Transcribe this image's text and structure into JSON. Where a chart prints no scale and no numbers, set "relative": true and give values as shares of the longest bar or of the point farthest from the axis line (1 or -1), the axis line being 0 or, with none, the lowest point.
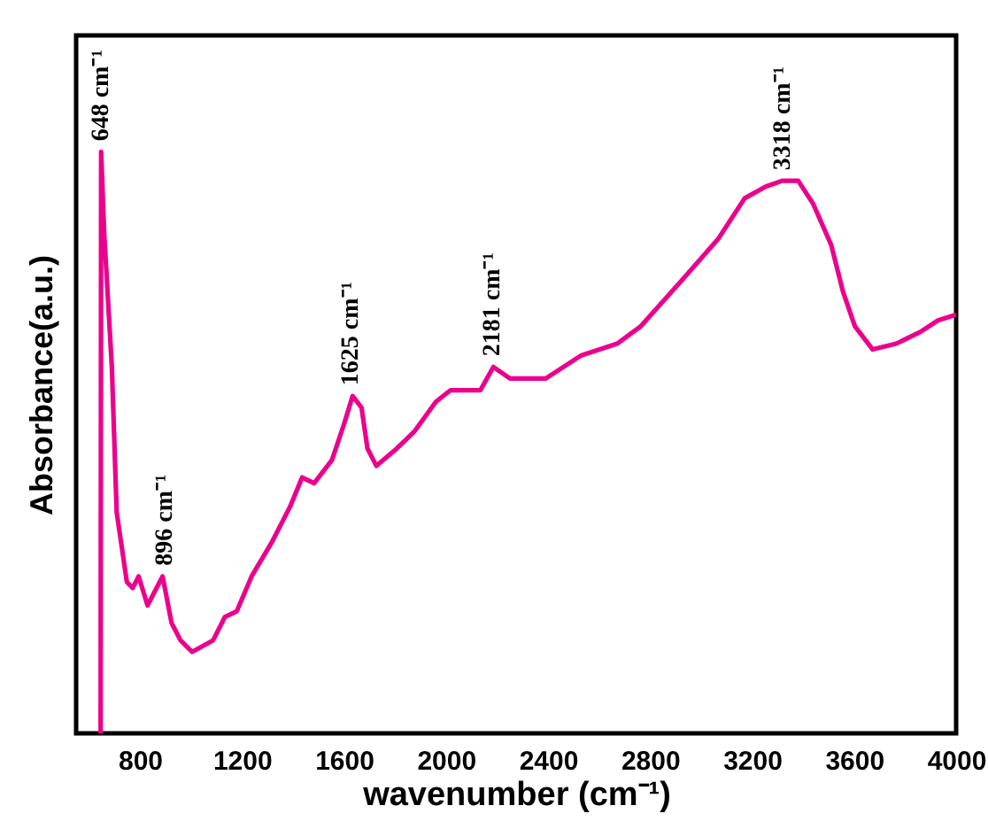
{
  "chart_data": {
    "type": "line",
    "relative": true,
    "xlabel": "wavenumber (cm⁻¹)",
    "ylabel": "Absorbance(a.u.)",
    "xlim": [
      550,
      4000
    ],
    "xticks": [
      800,
      1200,
      1600,
      2000,
      2400,
      2800,
      3200,
      3600,
      4000
    ],
    "series": [
      {
        "color": "#ec008c",
        "x": [
          646,
          648,
          660,
          690,
          709,
          749,
          772,
          795,
          830,
          889,
          924,
          959,
          1005,
          1087,
          1133,
          1180,
          1238,
          1319,
          1389,
          1436,
          1483,
          1553,
          1599,
          1634,
          1669,
          1692,
          1727,
          1808,
          1878,
          1960,
          2018,
          2135,
          2186,
          2251,
          2321,
          2391,
          2531,
          2671,
          2764,
          2927,
          3067,
          3171,
          3253,
          3318,
          3381,
          3440,
          3510,
          3556,
          3603,
          3673,
          3765,
          3859,
          3929,
          4000
        ],
        "values": [
          0,
          1,
          0.86,
          0.63,
          0.38,
          0.26,
          0.25,
          0.27,
          0.22,
          0.27,
          0.19,
          0.16,
          0.14,
          0.16,
          0.2,
          0.21,
          0.27,
          0.33,
          0.39,
          0.44,
          0.43,
          0.47,
          0.53,
          0.58,
          0.56,
          0.49,
          0.46,
          0.49,
          0.52,
          0.57,
          0.59,
          0.59,
          0.63,
          0.61,
          0.61,
          0.61,
          0.65,
          0.67,
          0.7,
          0.78,
          0.85,
          0.92,
          0.94,
          0.95,
          0.95,
          0.91,
          0.84,
          0.76,
          0.7,
          0.66,
          0.67,
          0.69,
          0.71,
          0.72
        ]
      }
    ],
    "annotations": [
      {
        "text": "648 cm⁻¹",
        "x": 648,
        "y": 1
      },
      {
        "text": "896 cm⁻¹",
        "x": 896,
        "y": 0.27
      },
      {
        "text": "1625 cm⁻¹",
        "x": 1625,
        "y": 0.58
      },
      {
        "text": "2181 cm⁻¹",
        "x": 2181,
        "y": 0.63
      },
      {
        "text": "3318 cm⁻¹",
        "x": 3318,
        "y": 0.95
      }
    ]
  }
}
